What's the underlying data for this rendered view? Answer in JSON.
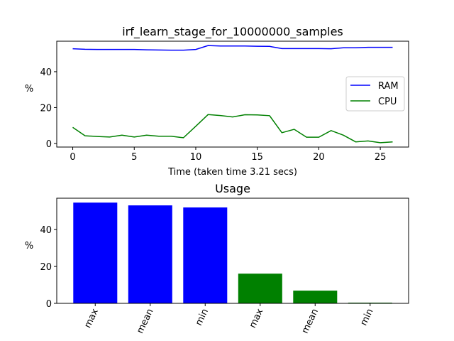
{
  "chart_data": [
    {
      "type": "line",
      "title": "irf_learn_stage_for_10000000_samples",
      "xlabel": "Time (taken time 3.21 secs)",
      "ylabel": "%",
      "xlim": [
        -1.3,
        27.3
      ],
      "ylim": [
        -2,
        57
      ],
      "xticks": [
        0,
        5,
        10,
        15,
        20,
        25
      ],
      "yticks": [
        0,
        20,
        40
      ],
      "legend_position": "center-right",
      "x": [
        0,
        1,
        2,
        3,
        4,
        5,
        6,
        7,
        8,
        9,
        10,
        11,
        12,
        13,
        14,
        15,
        16,
        17,
        18,
        19,
        20,
        21,
        22,
        23,
        24,
        25,
        26
      ],
      "series": [
        {
          "name": "RAM",
          "color": "#0000ff",
          "values": [
            52.8,
            52.5,
            52.4,
            52.4,
            52.4,
            52.4,
            52.2,
            52.1,
            52.0,
            52.0,
            52.4,
            54.6,
            54.3,
            54.3,
            54.3,
            54.2,
            54.1,
            52.9,
            52.9,
            52.9,
            52.9,
            52.8,
            53.3,
            53.3,
            53.6,
            53.6,
            53.6
          ]
        },
        {
          "name": "CPU",
          "color": "#008000",
          "values": [
            9.0,
            4.3,
            3.9,
            3.6,
            4.6,
            3.6,
            4.6,
            4.0,
            4.0,
            3.2,
            9.6,
            16.1,
            15.6,
            14.8,
            16.0,
            15.9,
            15.5,
            6.0,
            7.9,
            3.5,
            3.5,
            7.2,
            4.6,
            0.9,
            1.4,
            0.4,
            0.9
          ]
        }
      ]
    },
    {
      "type": "bar",
      "title": "Usage",
      "xlabel": "",
      "ylabel": "%",
      "ylim": [
        0,
        57
      ],
      "yticks": [
        0,
        20,
        40
      ],
      "categories": [
        "max",
        "mean",
        "min",
        "max",
        "mean",
        "min"
      ],
      "values": [
        54.6,
        53.1,
        52.0,
        16.1,
        6.9,
        0.4
      ],
      "colors": [
        "#0000ff",
        "#0000ff",
        "#0000ff",
        "#008000",
        "#008000",
        "#008000"
      ]
    }
  ]
}
